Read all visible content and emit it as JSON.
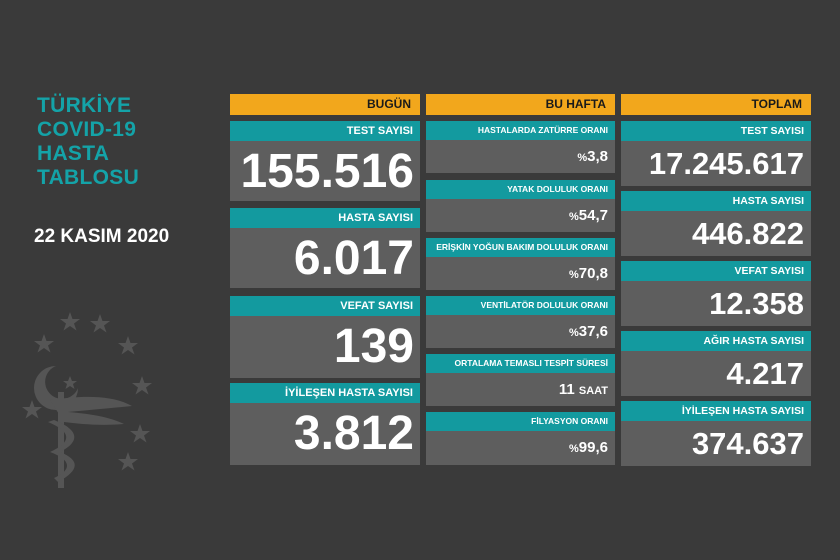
{
  "title": [
    "TÜRKİYE",
    "COVID-19",
    "HASTA",
    "TABLOSU"
  ],
  "date": "22 KASIM 2020",
  "today": {
    "header": "BUGÜN",
    "cards": [
      {
        "label": "TEST SAYISI",
        "value": "155.516"
      },
      {
        "label": "HASTA SAYISI",
        "value": "6.017"
      },
      {
        "label": "VEFAT SAYISI",
        "value": "139"
      },
      {
        "label": "İYİLEŞEN HASTA SAYISI",
        "value": "3.812"
      }
    ]
  },
  "week": {
    "header": "BU HAFTA",
    "cards": [
      {
        "label": "HASTALARDA ZATÜRRE ORANI",
        "prefix": "%",
        "value": "3,8"
      },
      {
        "label": "YATAK DOLULUK ORANI",
        "prefix": "%",
        "value": "54,7"
      },
      {
        "label": "ERİŞKİN YOĞUN BAKIM DOLULUK ORANI",
        "prefix": "%",
        "value": "70,8"
      },
      {
        "label": "VENTİLATÖR DOLULUK ORANI",
        "prefix": "%",
        "value": "37,6"
      },
      {
        "label": "ORTALAMA TEMASLI TESPİT SÜRESİ",
        "value": "11",
        "suffix": "SAAT"
      },
      {
        "label": "FİLYASYON ORANI",
        "prefix": "%",
        "value": "99,6"
      }
    ]
  },
  "total": {
    "header": "TOPLAM",
    "cards": [
      {
        "label": "TEST SAYISI",
        "value": "17.245.617"
      },
      {
        "label": "HASTA SAYISI",
        "value": "446.822"
      },
      {
        "label": "VEFAT SAYISI",
        "value": "12.358"
      },
      {
        "label": "AĞIR HASTA SAYISI",
        "value": "4.217"
      },
      {
        "label": "İYİLEŞEN HASTA SAYISI",
        "value": "374.637"
      }
    ]
  },
  "colors": {
    "background": "#3a3a3a",
    "header": "#f2a71c",
    "label": "#139a9f",
    "value_box": "#5e5e5e",
    "title_text": "#14a3a8"
  }
}
